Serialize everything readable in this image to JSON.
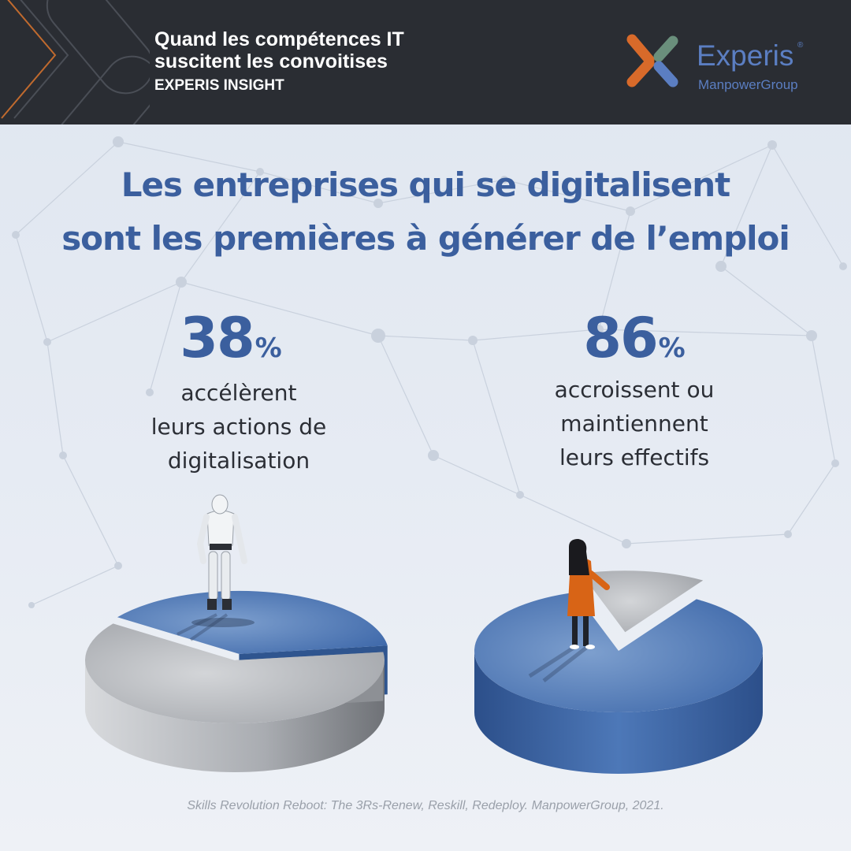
{
  "header": {
    "title_line1": "Quand les compétences IT",
    "title_line2": "suscitent les convoitises",
    "subtitle": "EXPERIS INSIGHT"
  },
  "logo": {
    "name": "Experis",
    "registered": "®",
    "group": "ManpowerGroup",
    "mark_icon": "experis-x-mark-icon",
    "colors": {
      "orange": "#d86a2a",
      "green": "#6a8f7c",
      "blue": "#5b7ec2"
    }
  },
  "headline": {
    "line1": "Les entreprises qui se digitalisent",
    "line2": "sont les premières à générer de l’emploi"
  },
  "chart_data": [
    {
      "type": "pie",
      "slices": [
        {
          "value": 38,
          "color": "#3a62a3"
        },
        {
          "value": 62,
          "color": "#aeb1b6"
        }
      ],
      "value_text": "38",
      "unit": "%",
      "description_lines": [
        "accélèrent",
        "leurs actions de",
        "digitalisation"
      ],
      "figure_icon": "robot-figure-icon"
    },
    {
      "type": "pie",
      "slices": [
        {
          "value": 86,
          "color": "#3a62a3"
        },
        {
          "value": 14,
          "color": "#aeb1b6"
        }
      ],
      "value_text": "86",
      "unit": "%",
      "description_lines": [
        "accroissent ou",
        "maintiennent",
        "leurs effectifs"
      ],
      "figure_icon": "woman-figure-icon"
    }
  ],
  "source": "Skills Revolution Reboot: The 3Rs-Renew, Reskill, Redeploy. ManpowerGroup, 2021."
}
